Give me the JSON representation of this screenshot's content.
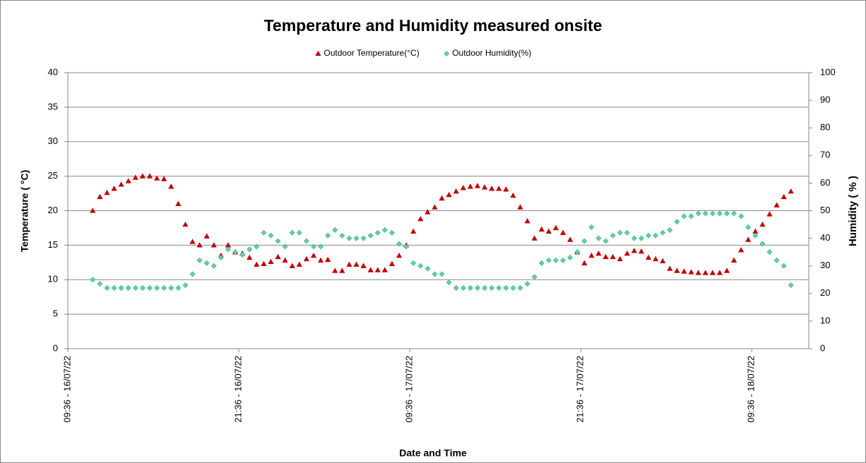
{
  "chart_data": {
    "type": "scatter",
    "title": "Temperature and Humidity measured onsite",
    "x_label": "Date and Time",
    "y_label": "Temperature ( °C)",
    "y2_label": "Humidity ( % )",
    "legend": "top",
    "grid": true,
    "xlim": [
      0,
      52
    ],
    "xticks": [
      {
        "value": 0,
        "label": "09:36 - 16/07/22"
      },
      {
        "value": 12,
        "label": "21:36 - 16/07/22"
      },
      {
        "value": 24,
        "label": "09:36 - 17/07/22"
      },
      {
        "value": 36,
        "label": "21:36 - 17/07/22"
      },
      {
        "value": 48,
        "label": "09:36 - 18/07/22"
      }
    ],
    "ylim": [
      0,
      40
    ],
    "yticks": [
      0,
      5,
      10,
      15,
      20,
      25,
      30,
      35,
      40
    ],
    "y2lim": [
      0,
      100
    ],
    "y2ticks": [
      0,
      10,
      20,
      30,
      40,
      50,
      60,
      70,
      80,
      90,
      100
    ],
    "x": [
      1.75,
      2.25,
      2.75,
      3.25,
      3.75,
      4.25,
      4.75,
      5.25,
      5.75,
      6.25,
      6.75,
      7.25,
      7.75,
      8.25,
      8.75,
      9.25,
      9.75,
      10.25,
      10.75,
      11.25,
      11.75,
      12.25,
      12.75,
      13.25,
      13.75,
      14.25,
      14.75,
      15.25,
      15.75,
      16.25,
      16.75,
      17.25,
      17.75,
      18.25,
      18.75,
      19.25,
      19.75,
      20.25,
      20.75,
      21.25,
      21.75,
      22.25,
      22.75,
      23.25,
      23.75,
      24.25,
      24.75,
      25.25,
      25.75,
      26.25,
      26.75,
      27.25,
      27.75,
      28.25,
      28.75,
      29.25,
      29.75,
      30.25,
      30.75,
      31.25,
      31.75,
      32.25,
      32.75,
      33.25,
      33.75,
      34.25,
      34.75,
      35.25,
      35.75,
      36.25,
      36.75,
      37.25,
      37.75,
      38.25,
      38.75,
      39.25,
      39.75,
      40.25,
      40.75,
      41.25,
      41.75,
      42.25,
      42.75,
      43.25,
      43.75,
      44.25,
      44.75,
      45.25,
      45.75,
      46.25,
      46.75,
      47.25,
      47.75,
      48.25,
      48.75,
      49.25,
      49.75,
      50.25,
      50.75
    ],
    "series": [
      {
        "name": "Outdoor Temperature(°C)",
        "color": "#c00000",
        "marker": "triangle",
        "axis": "y",
        "values": [
          20,
          22,
          22.6,
          23.2,
          23.8,
          24.3,
          24.8,
          25,
          25,
          24.7,
          24.6,
          23.5,
          21,
          18,
          15.5,
          15,
          16.3,
          15,
          13.5,
          15,
          14,
          13.8,
          13.2,
          12.2,
          12.3,
          12.6,
          13.3,
          12.8,
          12,
          12.2,
          13,
          13.5,
          12.8,
          12.9,
          11.3,
          11.3,
          12.2,
          12.2,
          12,
          11.4,
          11.4,
          11.4,
          12.3,
          13.5,
          15,
          17,
          18.8,
          19.8,
          20.5,
          21.8,
          22.3,
          22.8,
          23.3,
          23.5,
          23.6,
          23.4,
          23.2,
          23.2,
          23.1,
          22.2,
          20.5,
          18.5,
          16,
          17.3,
          17,
          17.5,
          16.8,
          15.8,
          14,
          12.4,
          13.5,
          13.8,
          13.3,
          13.3,
          13,
          13.8,
          14.2,
          14.1,
          13.2,
          13,
          12.7,
          11.6,
          11.3,
          11.2,
          11.1,
          11,
          11,
          11,
          11,
          11.3,
          12.8,
          14.3,
          15.8,
          17,
          18,
          19.5,
          20.8,
          22,
          22.8
        ]
      },
      {
        "name": "Outdoor Humidity(%)",
        "color": "#4bd3c8",
        "marker": "diamond",
        "axis": "y2",
        "values": [
          25,
          23.5,
          22,
          22,
          22,
          22,
          22,
          22,
          22,
          22,
          22,
          22,
          22,
          23,
          27,
          32,
          31,
          30,
          33,
          36,
          35,
          34,
          36,
          37,
          42,
          41,
          39,
          37,
          42,
          42,
          39,
          37,
          37,
          41,
          43,
          41,
          40,
          40,
          40,
          41,
          42,
          43,
          42,
          38,
          37,
          31,
          30,
          29,
          27,
          27,
          24,
          22,
          22,
          22,
          22,
          22,
          22,
          22,
          22,
          22,
          22,
          23.5,
          26,
          31,
          32,
          32,
          32,
          33,
          35,
          39,
          44,
          40,
          39,
          41,
          42,
          42,
          40,
          40,
          41,
          41,
          42,
          43,
          46,
          48,
          48,
          49,
          49,
          49,
          49,
          49,
          49,
          48,
          44,
          41,
          38,
          35,
          32,
          30,
          23
        ]
      }
    ]
  }
}
